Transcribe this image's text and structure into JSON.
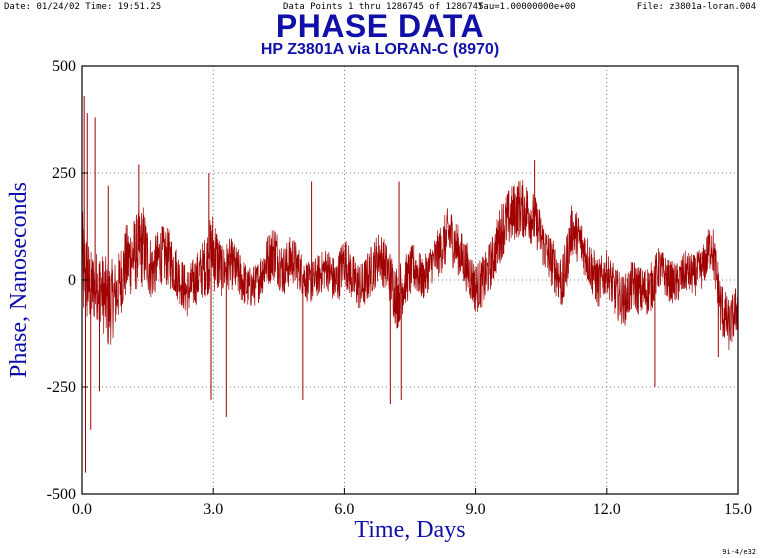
{
  "header": {
    "date_time": "Date: 01/24/02  Time: 19:51.25",
    "data_points": "Data Points 1 thru 1286745 of 1286745",
    "tau": "Tau=1.00000000e+00",
    "file": "File: z3801a-loran.004"
  },
  "footer": {
    "code": "9i-4/e32"
  },
  "chart_data": {
    "type": "line",
    "title": "PHASE DATA",
    "subtitle": "HP Z3801A via LORAN-C (8970)",
    "xlabel": "Time, Days",
    "ylabel": "Phase, Nanoseconds",
    "xlim": [
      0,
      15
    ],
    "ylim": [
      -500,
      500
    ],
    "x_ticks": [
      "0.0",
      "3.0",
      "6.0",
      "9.0",
      "12.0",
      "15.0"
    ],
    "y_ticks": [
      "500",
      "250",
      "0",
      "-250",
      "-500"
    ],
    "grid": "dotted",
    "series": [
      {
        "color": "#a00000",
        "x": [
          0.0,
          0.2,
          0.4,
          0.6,
          0.8,
          1.0,
          1.2,
          1.4,
          1.6,
          1.8,
          2.0,
          2.2,
          2.4,
          2.6,
          2.8,
          3.0,
          3.2,
          3.4,
          3.6,
          3.8,
          4.0,
          4.2,
          4.4,
          4.6,
          4.8,
          5.0,
          5.2,
          5.4,
          5.6,
          5.8,
          6.0,
          6.2,
          6.4,
          6.6,
          6.8,
          7.0,
          7.2,
          7.4,
          7.6,
          7.8,
          8.0,
          8.2,
          8.4,
          8.6,
          8.8,
          9.0,
          9.2,
          9.4,
          9.6,
          9.8,
          10.0,
          10.2,
          10.4,
          10.6,
          10.8,
          11.0,
          11.2,
          11.4,
          11.6,
          11.8,
          12.0,
          12.2,
          12.4,
          12.6,
          12.8,
          13.0,
          13.2,
          13.4,
          13.6,
          13.8,
          14.0,
          14.2,
          14.4,
          14.6,
          14.8,
          15.0
        ],
        "y": [
          30,
          -20,
          -10,
          -60,
          -30,
          40,
          60,
          80,
          20,
          60,
          50,
          10,
          -30,
          0,
          30,
          70,
          20,
          40,
          10,
          -20,
          -10,
          40,
          70,
          20,
          50,
          20,
          -10,
          10,
          30,
          -10,
          50,
          0,
          -20,
          20,
          60,
          20,
          -40,
          0,
          30,
          0,
          40,
          70,
          110,
          70,
          30,
          -20,
          0,
          50,
          120,
          150,
          170,
          160,
          130,
          70,
          30,
          -10,
          120,
          90,
          40,
          -10,
          20,
          -30,
          -50,
          -10,
          -30,
          -20,
          30,
          0,
          -10,
          20,
          10,
          30,
          90,
          -60,
          -110,
          -60
        ],
        "envelope": [
          140,
          90,
          80,
          110,
          80,
          90,
          90,
          100,
          70,
          70,
          70,
          60,
          60,
          60,
          70,
          100,
          60,
          60,
          60,
          50,
          50,
          60,
          70,
          60,
          60,
          50,
          50,
          50,
          50,
          60,
          60,
          60,
          60,
          60,
          60,
          60,
          80,
          60,
          60,
          50,
          50,
          60,
          70,
          60,
          60,
          60,
          60,
          60,
          70,
          70,
          70,
          70,
          60,
          60,
          60,
          70,
          60,
          60,
          60,
          60,
          50,
          60,
          60,
          60,
          60,
          60,
          50,
          50,
          50,
          50,
          50,
          50,
          60,
          70,
          60,
          60
        ],
        "spikes": [
          {
            "x": 0.05,
            "y": 430
          },
          {
            "x": 0.08,
            "y": -450
          },
          {
            "x": 0.12,
            "y": 390
          },
          {
            "x": 0.2,
            "y": -350
          },
          {
            "x": 0.3,
            "y": 380
          },
          {
            "x": 0.4,
            "y": -260
          },
          {
            "x": 0.6,
            "y": 220
          },
          {
            "x": 1.3,
            "y": 270
          },
          {
            "x": 2.9,
            "y": 250
          },
          {
            "x": 2.95,
            "y": -280
          },
          {
            "x": 3.3,
            "y": -320
          },
          {
            "x": 5.05,
            "y": -280
          },
          {
            "x": 5.25,
            "y": 230
          },
          {
            "x": 7.05,
            "y": -290
          },
          {
            "x": 7.25,
            "y": 230
          },
          {
            "x": 7.3,
            "y": -280
          },
          {
            "x": 10.35,
            "y": 280
          },
          {
            "x": 13.1,
            "y": -250
          },
          {
            "x": 14.55,
            "y": -180
          }
        ]
      }
    ]
  }
}
